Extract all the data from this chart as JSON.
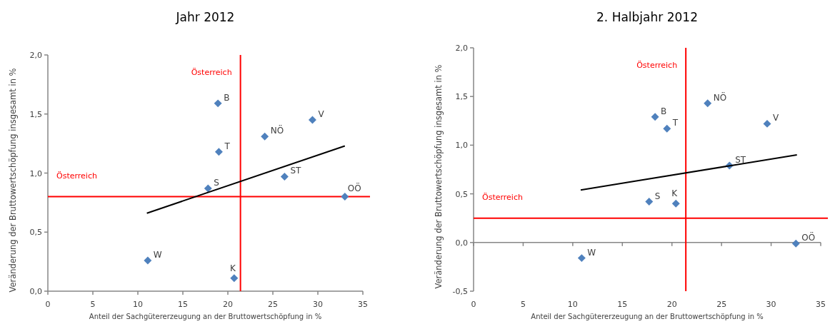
{
  "chart_data": [
    {
      "type": "scatter",
      "title": "Jahr 2012",
      "xlabel": "Anteil der Sachgütererzeugung an der Bruttowertschöpfung  in %",
      "ylabel": "Veränderung der Bruttowertschöpfung insgesamt in %",
      "xlim": [
        0,
        35
      ],
      "ylim": [
        0,
        2
      ],
      "xticks": [
        0,
        5,
        10,
        15,
        20,
        25,
        30,
        35
      ],
      "yticks": [
        {
          "value": 0,
          "label": "0,0"
        },
        {
          "value": 0.5,
          "label": "0,5"
        },
        {
          "value": 1,
          "label": "1,0"
        },
        {
          "value": 1.5,
          "label": "1,5"
        },
        {
          "value": 2,
          "label": "2,0"
        }
      ],
      "marker": "diamond",
      "series": [
        {
          "color": "#4f81bd",
          "x": [
            18.9,
            29.4,
            24.1,
            19.0,
            26.3,
            17.8,
            33.0,
            11.1,
            20.7
          ],
          "values": [
            1.59,
            1.45,
            1.31,
            1.18,
            0.97,
            0.87,
            0.8,
            0.26,
            0.11
          ]
        },
        {
          "type": "line",
          "marker": "none",
          "color": "#000000",
          "x": [
            11.0,
            33.0
          ],
          "values": [
            0.66,
            1.23
          ]
        }
      ],
      "ref_lines": [
        {
          "axis": "x",
          "value": 21.4,
          "label": "Österreich",
          "color": "#ff0000"
        },
        {
          "axis": "y",
          "value": 0.8,
          "label": "Österreich",
          "color": "#ff0000"
        }
      ],
      "annotations": [
        {
          "text": "B",
          "x": 18.9,
          "y": 1.59
        },
        {
          "text": "V",
          "x": 29.4,
          "y": 1.45
        },
        {
          "text": "NÖ",
          "x": 24.1,
          "y": 1.31
        },
        {
          "text": "T",
          "x": 19.0,
          "y": 1.18
        },
        {
          "text": "ST",
          "x": 26.3,
          "y": 0.97
        },
        {
          "text": "S",
          "x": 17.8,
          "y": 0.87
        },
        {
          "text": "OÖ",
          "x": 33.0,
          "y": 0.8
        },
        {
          "text": "W",
          "x": 11.1,
          "y": 0.26
        },
        {
          "text": "K",
          "x": 20.7,
          "y": 0.11
        }
      ]
    },
    {
      "type": "scatter",
      "title": "2. Halbjahr 2012",
      "xlabel": "Anteil der Sachgütererzeugung an der Bruttowertschöpfung  in %",
      "ylabel": "Veränderung der Bruttowertschöpfung insgesamt in %",
      "xlim": [
        0,
        35
      ],
      "ylim": [
        -0.5,
        2
      ],
      "xticks": [
        0,
        5,
        10,
        15,
        20,
        25,
        30,
        35
      ],
      "yticks": [
        {
          "value": -0.5,
          "label": "-0,5"
        },
        {
          "value": 0,
          "label": "0,0"
        },
        {
          "value": 0.5,
          "label": "0,5"
        },
        {
          "value": 1,
          "label": "1,0"
        },
        {
          "value": 1.5,
          "label": "1,5"
        },
        {
          "value": 2,
          "label": "2,0"
        }
      ],
      "marker": "diamond",
      "series": [
        {
          "color": "#4f81bd",
          "x": [
            23.6,
            18.3,
            19.5,
            29.6,
            25.8,
            17.7,
            20.4,
            10.9,
            32.5
          ],
          "values": [
            1.43,
            1.29,
            1.17,
            1.22,
            0.79,
            0.42,
            0.4,
            -0.16,
            -0.01
          ]
        },
        {
          "type": "line",
          "marker": "none",
          "color": "#000000",
          "x": [
            10.8,
            32.6
          ],
          "values": [
            0.54,
            0.9
          ]
        }
      ],
      "ref_lines": [
        {
          "axis": "x",
          "value": 21.4,
          "label": "Österreich",
          "color": "#ff0000"
        },
        {
          "axis": "y",
          "value": 0.25,
          "label": "Österreich",
          "color": "#ff0000"
        }
      ],
      "annotations": [
        {
          "text": "NÖ",
          "x": 23.6,
          "y": 1.43
        },
        {
          "text": "B",
          "x": 18.3,
          "y": 1.29
        },
        {
          "text": "T",
          "x": 19.5,
          "y": 1.17
        },
        {
          "text": "V",
          "x": 29.6,
          "y": 1.22
        },
        {
          "text": "ST",
          "x": 25.8,
          "y": 0.79
        },
        {
          "text": "S",
          "x": 17.7,
          "y": 0.42
        },
        {
          "text": "K",
          "x": 20.4,
          "y": 0.4
        },
        {
          "text": "W",
          "x": 10.9,
          "y": -0.16
        },
        {
          "text": "OÖ",
          "x": 32.5,
          "y": -0.01
        }
      ]
    }
  ]
}
